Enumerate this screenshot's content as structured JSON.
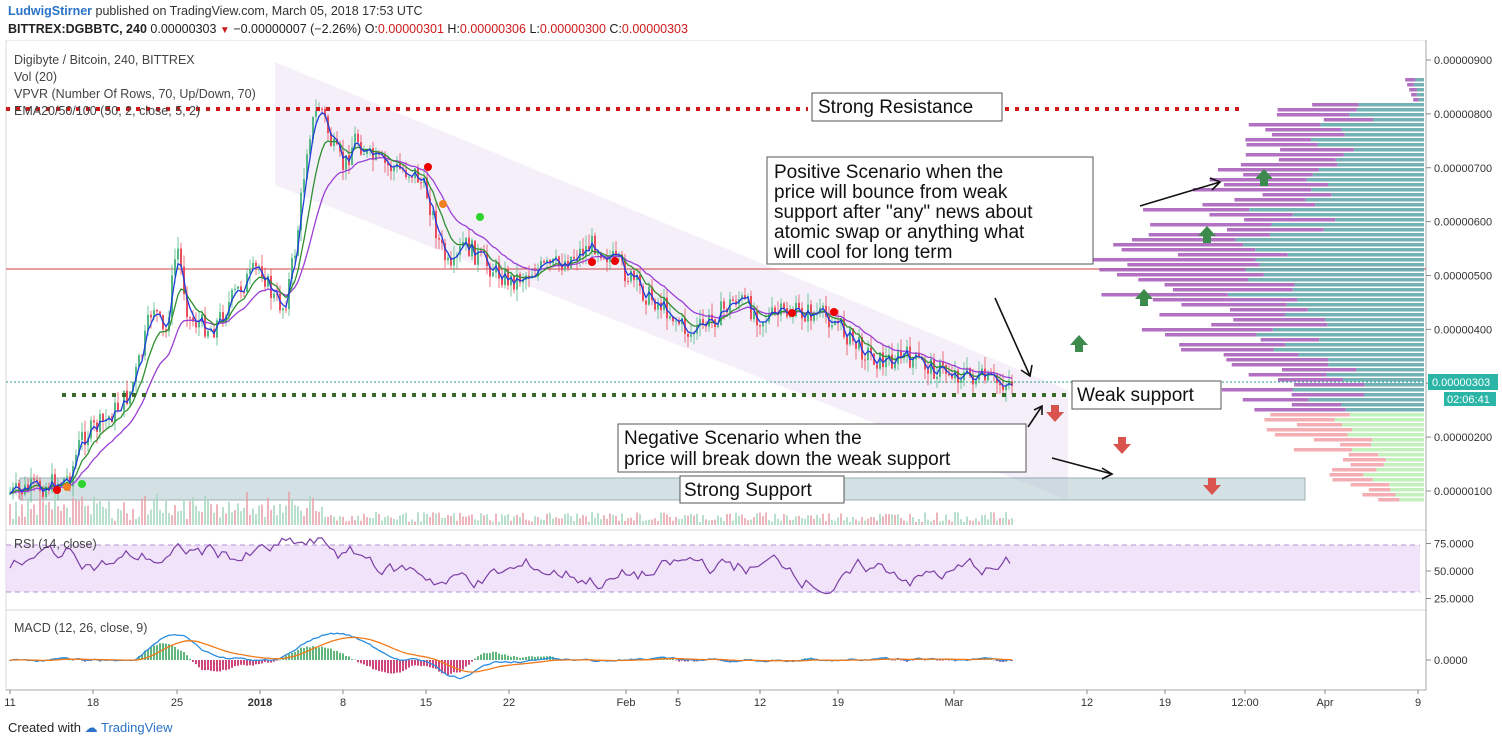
{
  "header": {
    "author": "LudwigStirner",
    "published": "published on TradingView.com, March 05, 2018 17:53 UTC",
    "symbol": "BITTREX:DGBBTC, 240",
    "last": "0.00000303",
    "change": "−0.00000007 (−2.26%)",
    "ohlc_o_label": "O:",
    "ohlc_o": "0.00000301",
    "ohlc_h_label": "H:",
    "ohlc_h": "0.00000306",
    "ohlc_l_label": "L:",
    "ohlc_l": "0.00000300",
    "ohlc_c_label": "C:",
    "ohlc_c": "0.00000303"
  },
  "legend": {
    "title": "Digibyte / Bitcoin, 240, BITTREX",
    "vol": "Vol (20)",
    "vpvr": "VPVR (Number Of Rows, 70, Up/Down, 70)",
    "ema": "EMA20/50/100 (50, 2, close, 5, 2)"
  },
  "annotations": {
    "strong_resistance": "Strong Resistance",
    "positive": [
      "Positive Scenario when the",
      "price will bounce from weak",
      "support after \"any\" news about",
      "atomic swap or anything what",
      "will cool for long term"
    ],
    "weak_support": "Weak support",
    "negative": [
      "Negative Scenario when the",
      "price will break down the weak support"
    ],
    "strong_support": "Strong Support"
  },
  "price_badge": "0.00000303",
  "timer_badge": "02:06:41",
  "rsi_label": "RSI (14, close)",
  "macd_label": "MACD (12, 26, close, 9)",
  "footer": {
    "created": "Created with",
    "brand": "TradingView"
  },
  "colors": {
    "up": "#53b987",
    "down": "#eb4d5c",
    "ema20": "#1f3ddb",
    "ema50": "#2f8f2f",
    "ema100": "#9b3fd6",
    "resistance": "#d01a1a",
    "support": "#3a6b2a",
    "rsi": "#7b3fa6",
    "macd": "#2b8de0",
    "signal": "#f07a1a"
  },
  "chart_data": [
    {
      "type": "candlestick",
      "title": "Digibyte / Bitcoin, 240, BITTREX",
      "ylim": [
        7e-07,
        9.2e-06
      ],
      "yticks": [
        "0.00000900",
        "0.00000800",
        "0.00000700",
        "0.00000600",
        "0.00000500",
        "0.00000400",
        "0.00000300",
        "0.00000200",
        "0.00000100"
      ],
      "x_ticks": [
        "11",
        "18",
        "25",
        "2018",
        "8",
        "15",
        "22",
        "Feb",
        "5",
        "12",
        "19",
        "Mar",
        "12",
        "19",
        "12:00",
        "Apr",
        "9"
      ],
      "price_path": [
        [
          "Dec 11",
          9.5e-07
        ],
        [
          "Dec 14",
          1.1e-06
        ],
        [
          "Dec 16",
          1.25e-06
        ],
        [
          "Dec 17",
          2e-06
        ],
        [
          "Dec 19",
          2.3e-06
        ],
        [
          "Dec 21",
          2.8e-06
        ],
        [
          "Dec 22",
          3.5e-06
        ],
        [
          "Dec 23",
          4.5e-06
        ],
        [
          "Dec 24",
          3.8e-06
        ],
        [
          "Dec 25",
          5.6e-06
        ],
        [
          "Dec 26",
          4.2e-06
        ],
        [
          "Dec 28",
          4e-06
        ],
        [
          "Dec 30",
          4.7e-06
        ],
        [
          "Jan 1",
          5.2e-06
        ],
        [
          "Jan 2",
          4.6e-06
        ],
        [
          "Jan 3",
          4.4e-06
        ],
        [
          "Jan 4",
          5.6e-06
        ],
        [
          "Jan 5",
          7.6e-06
        ],
        [
          "Jan 6",
          8.2e-06
        ],
        [
          "Jan 7",
          7.4e-06
        ],
        [
          "Jan 8",
          7e-06
        ],
        [
          "Jan 9",
          7.6e-06
        ],
        [
          "Jan 10",
          7.2e-06
        ],
        [
          "Jan 12",
          7e-06
        ],
        [
          "Jan 14",
          6.9e-06
        ],
        [
          "Jan 15",
          6.5e-06
        ],
        [
          "Jan 16",
          5.6e-06
        ],
        [
          "Jan 17",
          5e-06
        ],
        [
          "Jan 18",
          5.6e-06
        ],
        [
          "Jan 20",
          5.2e-06
        ],
        [
          "Jan 22",
          4.9e-06
        ],
        [
          "Jan 24",
          5.1e-06
        ],
        [
          "Jan 26",
          5.2e-06
        ],
        [
          "Jan 29",
          5.6e-06
        ],
        [
          "Jan 31",
          5.2e-06
        ],
        [
          "Feb 2",
          4.7e-06
        ],
        [
          "Feb 4",
          4.4e-06
        ],
        [
          "Feb 6",
          3.9e-06
        ],
        [
          "Feb 8",
          4.2e-06
        ],
        [
          "Feb 10",
          4.6e-06
        ],
        [
          "Feb 12",
          4.2e-06
        ],
        [
          "Feb 14",
          4.3e-06
        ],
        [
          "Feb 16",
          4.3e-06
        ],
        [
          "Feb 18",
          4.2e-06
        ],
        [
          "Feb 20",
          3.7e-06
        ],
        [
          "Feb 22",
          3.4e-06
        ],
        [
          "Feb 24",
          3.5e-06
        ],
        [
          "Feb 26",
          3.3e-06
        ],
        [
          "Feb 28",
          3.2e-06
        ],
        [
          "Mar 2",
          3.1e-06
        ],
        [
          "Mar 4",
          3e-06
        ],
        [
          "Mar 5",
          3.03e-06
        ]
      ],
      "levels": {
        "strong_resistance": 8.1e-06,
        "weak_support": 2.75e-06,
        "red_line": 5.1e-06,
        "strong_support_range": [
          8e-07,
          1.2e-06
        ]
      },
      "vpvr_profile": "horizontal volume bars on right side, peak near 0.00000500",
      "series": [
        {
          "name": "EMA20",
          "desc": "blue fast moving average"
        },
        {
          "name": "EMA50",
          "desc": "green/red medium moving average"
        },
        {
          "name": "EMA100",
          "desc": "purple slow moving average"
        }
      ]
    },
    {
      "type": "line",
      "title": "RSI (14, close)",
      "ylim": [
        15,
        85
      ],
      "yticks": [
        "75.0000",
        "50.0000",
        "25.0000"
      ],
      "bands": [
        30,
        70
      ],
      "last": 42
    },
    {
      "type": "line",
      "title": "MACD (12, 26, close, 9)",
      "yticks": [
        "0.0000"
      ]
    }
  ]
}
